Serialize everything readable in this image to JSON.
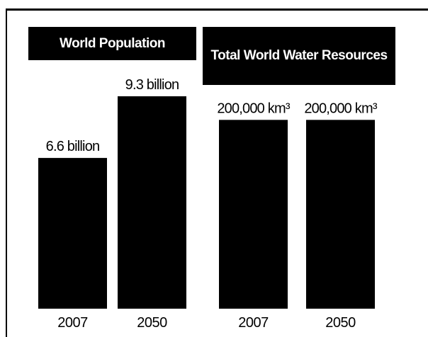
{
  "chart_data": [
    {
      "type": "bar",
      "title": "World Population",
      "categories": [
        "2007",
        "2050"
      ],
      "values": [
        6.6,
        9.3
      ],
      "data_labels": [
        "6.6 billion",
        "9.3 billion"
      ],
      "unit": "billion",
      "ylim": [
        0,
        12.4
      ],
      "grid": false,
      "legend": "none",
      "color": "#000000"
    },
    {
      "type": "bar",
      "title": "Total World Water Resources",
      "categories": [
        "2007",
        "2050"
      ],
      "values": [
        200000,
        200000
      ],
      "data_labels": [
        "200,000 km³",
        "200,000 km³"
      ],
      "unit": "km³",
      "ylim": [
        0,
        300000
      ],
      "grid": false,
      "legend": "none",
      "color": "#000000"
    }
  ]
}
